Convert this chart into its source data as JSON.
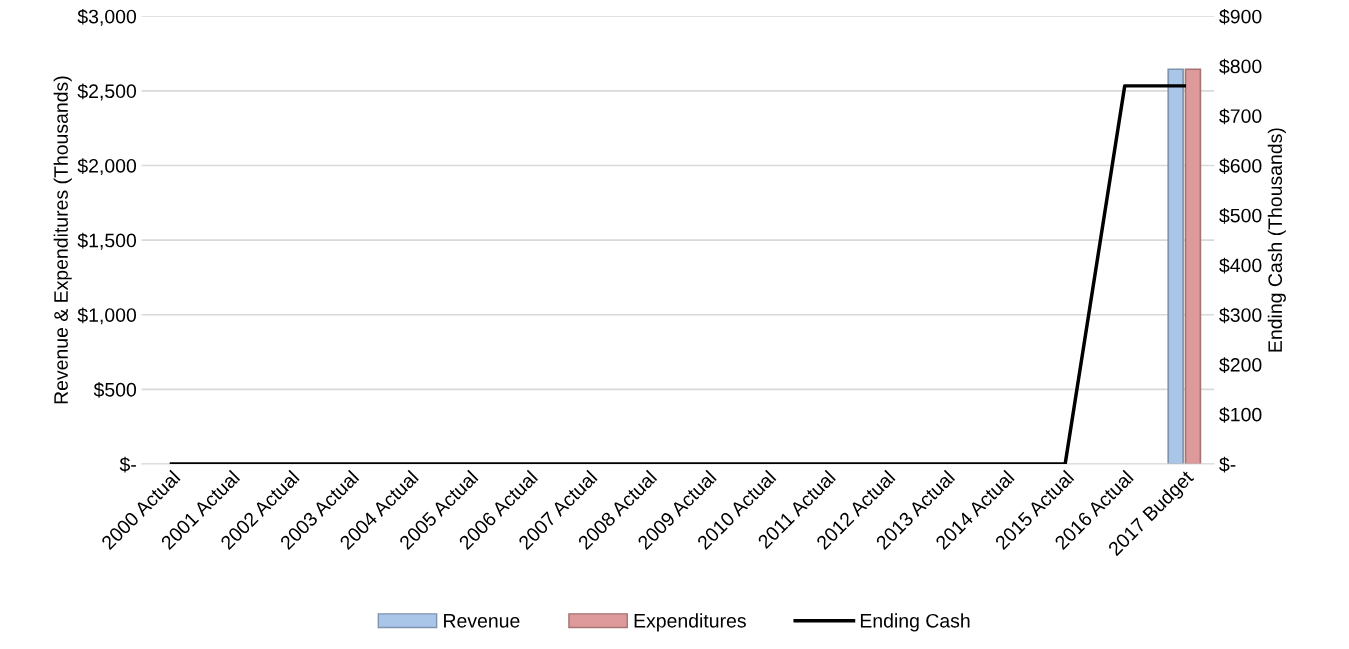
{
  "chart_data": {
    "type": "bar",
    "categories": [
      "2000 Actual",
      "2001 Actual",
      "2002 Actual",
      "2003 Actual",
      "2004 Actual",
      "2005 Actual",
      "2006 Actual",
      "2007 Actual",
      "2008 Actual",
      "2009 Actual",
      "2010 Actual",
      "2011 Actual",
      "2012 Actual",
      "2013 Actual",
      "2014 Actual",
      "2015 Actual",
      "2016 Actual",
      "2017 Budget"
    ],
    "series": [
      {
        "name": "Revenue",
        "color": "#a9c6e8",
        "values": [
          0,
          0,
          0,
          0,
          0,
          0,
          0,
          0,
          0,
          0,
          0,
          0,
          0,
          0,
          0,
          0,
          0,
          2645
        ]
      },
      {
        "name": "Expenditures",
        "color": "#de9a9a",
        "values": [
          0,
          0,
          0,
          0,
          0,
          0,
          0,
          0,
          0,
          0,
          0,
          0,
          0,
          0,
          0,
          0,
          0,
          2645
        ]
      },
      {
        "name": "Ending Cash",
        "type": "line",
        "axis": "y2",
        "color": "#000000",
        "values": [
          0,
          0,
          0,
          0,
          0,
          0,
          0,
          0,
          0,
          0,
          0,
          0,
          0,
          0,
          0,
          0,
          760,
          760
        ]
      }
    ],
    "ylabel": "Revenue & Expenditures (Thousands)",
    "y2label": "Ending Cash (Thousands)",
    "ylim": [
      0,
      3000
    ],
    "yticks": [
      {
        "value": 0,
        "label": "$-"
      },
      {
        "value": 500,
        "label": "$500"
      },
      {
        "value": 1000,
        "label": "$1,000"
      },
      {
        "value": 1500,
        "label": "$1,500"
      },
      {
        "value": 2000,
        "label": "$2,000"
      },
      {
        "value": 2500,
        "label": "$2,500"
      },
      {
        "value": 3000,
        "label": "$3,000"
      }
    ],
    "y2lim": [
      0,
      900
    ],
    "y2ticks": [
      {
        "value": 0,
        "label": "$-"
      },
      {
        "value": 100,
        "label": "$100"
      },
      {
        "value": 200,
        "label": "$200"
      },
      {
        "value": 300,
        "label": "$300"
      },
      {
        "value": 400,
        "label": "$400"
      },
      {
        "value": 500,
        "label": "$500"
      },
      {
        "value": 600,
        "label": "$600"
      },
      {
        "value": 700,
        "label": "$700"
      },
      {
        "value": 800,
        "label": "$800"
      },
      {
        "value": 900,
        "label": "$900"
      }
    ],
    "grid": "y",
    "legend": "bottom"
  }
}
